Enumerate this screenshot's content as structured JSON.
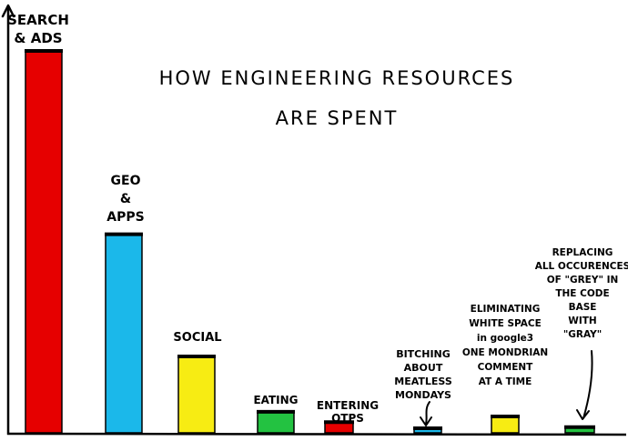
{
  "chart_data": {
    "type": "bar",
    "title_lines": [
      "HOW ENGINEERING RESOURCES",
      "ARE SPENT"
    ],
    "xlabel": "",
    "ylabel": "",
    "ylim": [
      0,
      100
    ],
    "grid": false,
    "categories": [
      {
        "label_lines": [
          "SEARCH",
          "& ADS"
        ],
        "value": 100,
        "color": "#e60000"
      },
      {
        "label_lines": [
          "GEO",
          "&",
          "APPS"
        ],
        "value": 52,
        "color": "#1bb8ea"
      },
      {
        "label_lines": [
          "SOCIAL"
        ],
        "value": 20,
        "color": "#f7ec13"
      },
      {
        "label_lines": [
          "EATING"
        ],
        "value": 5.5,
        "color": "#23c241"
      },
      {
        "label_lines": [
          "ENTERING",
          "OTPS"
        ],
        "value": 2.8,
        "color": "#e60000"
      },
      {
        "label_lines": [
          "BITCHING",
          "ABOUT",
          "MEATLESS",
          "MONDAYS"
        ],
        "value": 1.2,
        "color": "#1bb8ea"
      },
      {
        "label_lines": [
          "ELIMINATING",
          "WHITE SPACE",
          "in google3",
          "ONE MONDRIAN",
          "COMMENT",
          "AT A TIME"
        ],
        "value": 4.3,
        "color": "#f7ec13"
      },
      {
        "label_lines": [
          "REPLACING",
          "ALL OCCURENCES",
          "OF \"GREY\" IN",
          "THE CODE",
          "BASE",
          "WITH",
          "\"GRAY\""
        ],
        "value": 1.5,
        "color": "#23c241"
      }
    ]
  }
}
